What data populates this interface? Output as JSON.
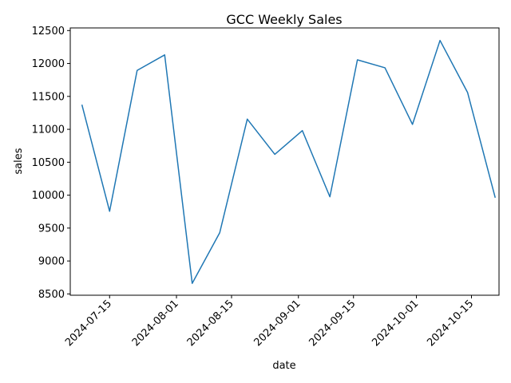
{
  "chart_data": {
    "type": "line",
    "title": "GCC Weekly Sales",
    "xlabel": "date",
    "ylabel": "sales",
    "x_tick_labels": [
      "2024-07-15",
      "2024-08-01",
      "2024-08-15",
      "2024-09-01",
      "2024-09-15",
      "2024-10-01",
      "2024-10-15"
    ],
    "y_ticks": [
      8500,
      9000,
      9500,
      10000,
      10500,
      11000,
      11500,
      12000,
      12500
    ],
    "ylim": [
      8480,
      12540
    ],
    "xlim": [
      "2024-07-05",
      "2024-10-22"
    ],
    "grid": false,
    "series": [
      {
        "color": "#1f77b4",
        "x": [
          "2024-07-08",
          "2024-07-15",
          "2024-07-22",
          "2024-07-29",
          "2024-08-05",
          "2024-08-12",
          "2024-08-19",
          "2024-08-26",
          "2024-09-02",
          "2024-09-09",
          "2024-09-16",
          "2024-09-23",
          "2024-09-30",
          "2024-10-07",
          "2024-10-14",
          "2024-10-21"
        ],
        "values": [
          11365,
          9755,
          11895,
          12130,
          8660,
          9430,
          11155,
          10620,
          10980,
          9975,
          12055,
          11935,
          11075,
          12350,
          11560,
          9970
        ]
      }
    ]
  }
}
